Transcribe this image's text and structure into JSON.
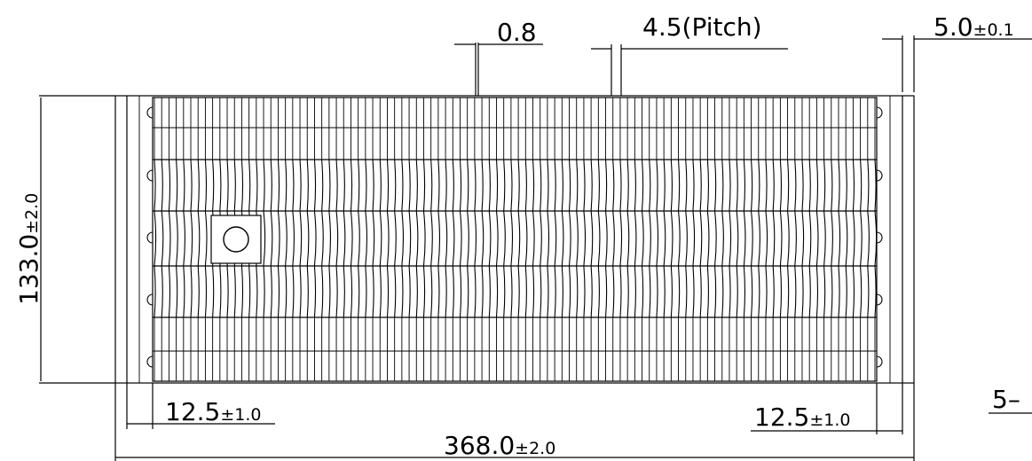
{
  "dimensions": {
    "fin_thickness": {
      "value": "0.8"
    },
    "pitch": {
      "value": "4.5(Pitch)"
    },
    "side_plate": {
      "value": "5.0",
      "tolerance": "±0.1"
    },
    "height": {
      "value": "133.0",
      "tolerance": "±2.0"
    },
    "left_margin": {
      "value": "12.5",
      "tolerance": "±1.0"
    },
    "right_margin": {
      "value": "12.5",
      "tolerance": "±1.0"
    },
    "overall_length": {
      "value": "368.0",
      "tolerance": "±2.0"
    },
    "cut_label": {
      "value": "5–"
    }
  },
  "colors": {
    "line": "#000000",
    "background": "#ffffff"
  },
  "fin_count": 100,
  "icons": {
    "mounting_hole": "circle-hole-icon"
  }
}
